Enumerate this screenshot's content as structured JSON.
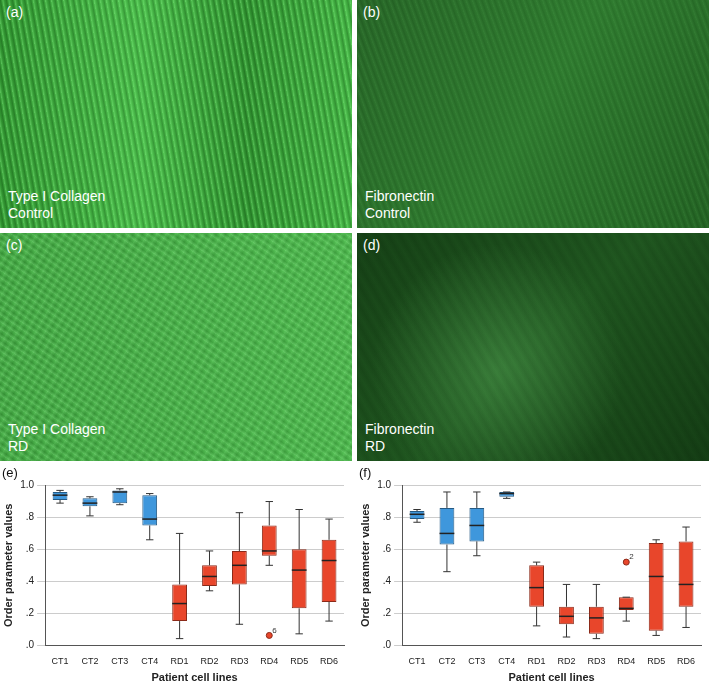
{
  "panels": [
    {
      "tag": "(a)",
      "caption": [
        "Type I Collagen",
        "Control"
      ]
    },
    {
      "tag": "(b)",
      "caption": [
        "Fibronectin",
        "Control"
      ]
    },
    {
      "tag": "(c)",
      "caption": [
        "Type I Collagen",
        "RD"
      ]
    },
    {
      "tag": "(d)",
      "caption": [
        "Fibronectin",
        "RD"
      ]
    }
  ],
  "chart_data": [
    {
      "type": "box",
      "title": "(e)",
      "x_label": "Patient cell lines",
      "y_label": "Order parameter values",
      "categories": [
        "CT1",
        "CT2",
        "CT3",
        "CT4",
        "RD1",
        "RD2",
        "RD3",
        "RD4",
        "RD5",
        "RD6"
      ],
      "colors": [
        "#3f97dc",
        "#3f97dc",
        "#3f97dc",
        "#3f97dc",
        "#e8462b",
        "#e8462b",
        "#e8462b",
        "#e8462b",
        "#e8462b",
        "#e8462b"
      ],
      "values": [
        {
          "min": 0.89,
          "q1": 0.91,
          "median": 0.94,
          "q3": 0.96,
          "max": 0.97
        },
        {
          "min": 0.81,
          "q1": 0.87,
          "median": 0.89,
          "q3": 0.92,
          "max": 0.93
        },
        {
          "min": 0.88,
          "q1": 0.89,
          "median": 0.96,
          "q3": 0.97,
          "max": 0.98
        },
        {
          "min": 0.66,
          "q1": 0.75,
          "median": 0.79,
          "q3": 0.94,
          "max": 0.95
        },
        {
          "min": 0.04,
          "q1": 0.15,
          "median": 0.26,
          "q3": 0.38,
          "max": 0.7
        },
        {
          "min": 0.34,
          "q1": 0.37,
          "median": 0.43,
          "q3": 0.5,
          "max": 0.59
        },
        {
          "min": 0.13,
          "q1": 0.38,
          "median": 0.5,
          "q3": 0.59,
          "max": 0.83
        },
        {
          "min": 0.5,
          "q1": 0.56,
          "median": 0.59,
          "q3": 0.75,
          "max": 0.9
        },
        {
          "min": 0.07,
          "q1": 0.23,
          "median": 0.47,
          "q3": 0.6,
          "max": 0.85
        },
        {
          "min": 0.15,
          "q1": 0.27,
          "median": 0.53,
          "q3": 0.66,
          "max": 0.79
        }
      ],
      "outliers": [
        {
          "category": "RD4",
          "value": 0.06,
          "label": "6"
        }
      ],
      "ylim": [
        0,
        1.0
      ],
      "yticks": [
        {
          "value": 0,
          "label": ".0"
        },
        {
          "value": 0.2,
          "label": ".2"
        },
        {
          "value": 0.4,
          "label": ".4"
        },
        {
          "value": 0.6,
          "label": ".6"
        },
        {
          "value": 0.8,
          "label": ".8"
        },
        {
          "value": 1.0,
          "label": "1.0"
        }
      ],
      "grid": true
    },
    {
      "type": "box",
      "title": "(f)",
      "x_label": "Patient cell lines",
      "y_label": "Order parameter values",
      "categories": [
        "CT1",
        "CT2",
        "CT3",
        "CT4",
        "RD1",
        "RD2",
        "RD3",
        "RD4",
        "RD5",
        "RD6"
      ],
      "colors": [
        "#3f97dc",
        "#3f97dc",
        "#3f97dc",
        "#3f97dc",
        "#e8462b",
        "#e8462b",
        "#e8462b",
        "#e8462b",
        "#e8462b",
        "#e8462b"
      ],
      "values": [
        {
          "min": 0.77,
          "q1": 0.79,
          "median": 0.82,
          "q3": 0.84,
          "max": 0.85
        },
        {
          "min": 0.46,
          "q1": 0.63,
          "median": 0.7,
          "q3": 0.86,
          "max": 0.96
        },
        {
          "min": 0.56,
          "q1": 0.65,
          "median": 0.75,
          "q3": 0.86,
          "max": 0.96
        },
        {
          "min": 0.92,
          "q1": 0.93,
          "median": 0.95,
          "q3": 0.96,
          "max": 0.96
        },
        {
          "min": 0.12,
          "q1": 0.24,
          "median": 0.36,
          "q3": 0.5,
          "max": 0.52
        },
        {
          "min": 0.05,
          "q1": 0.13,
          "median": 0.18,
          "q3": 0.24,
          "max": 0.38
        },
        {
          "min": 0.04,
          "q1": 0.07,
          "median": 0.17,
          "q3": 0.24,
          "max": 0.38
        },
        {
          "min": 0.15,
          "q1": 0.22,
          "median": 0.23,
          "q3": 0.3,
          "max": 0.3
        },
        {
          "min": 0.06,
          "q1": 0.09,
          "median": 0.43,
          "q3": 0.64,
          "max": 0.66
        },
        {
          "min": 0.11,
          "q1": 0.24,
          "median": 0.38,
          "q3": 0.65,
          "max": 0.74
        }
      ],
      "outliers": [
        {
          "category": "RD4",
          "value": 0.52,
          "label": "2"
        }
      ],
      "ylim": [
        0,
        1.0
      ],
      "yticks": [
        {
          "value": 0,
          "label": ".0"
        },
        {
          "value": 0.2,
          "label": ".2"
        },
        {
          "value": 0.4,
          "label": ".4"
        },
        {
          "value": 0.6,
          "label": ".6"
        },
        {
          "value": 0.8,
          "label": ".8"
        },
        {
          "value": 1.0,
          "label": "1.0"
        }
      ],
      "grid": true
    }
  ]
}
